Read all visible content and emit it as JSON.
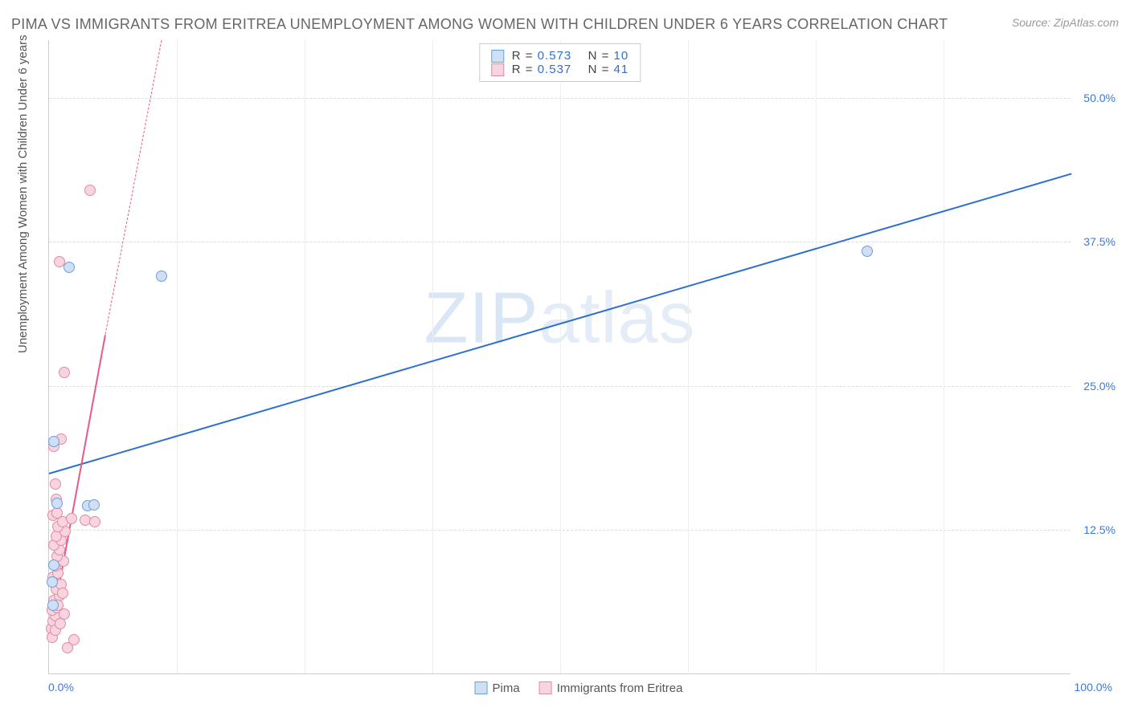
{
  "title": "PIMA VS IMMIGRANTS FROM ERITREA UNEMPLOYMENT AMONG WOMEN WITH CHILDREN UNDER 6 YEARS CORRELATION CHART",
  "source": "Source: ZipAtlas.com",
  "watermark": {
    "bold": "ZIP",
    "thin": "atlas"
  },
  "chart": {
    "type": "scatter",
    "xlim": [
      0,
      100
    ],
    "ylim": [
      0,
      55
    ],
    "xticks": [
      {
        "v": 0,
        "label": "0.0%"
      },
      {
        "v": 100,
        "label": "100.0%"
      }
    ],
    "yticks": [
      {
        "v": 12.5,
        "label": "12.5%"
      },
      {
        "v": 25.0,
        "label": "25.0%"
      },
      {
        "v": 37.5,
        "label": "37.5%"
      },
      {
        "v": 50.0,
        "label": "50.0%"
      }
    ],
    "grid_v": [
      12.5,
      25,
      37.5,
      50,
      62.5,
      75,
      87.5
    ],
    "ylabel": "Unemployment Among Women with Children Under 6 years",
    "grid_color": "#dddddd",
    "background_color": "#ffffff",
    "series": [
      {
        "name": "Pima",
        "color_fill": "#cfe0f5",
        "color_stroke": "#6a9fde",
        "line_color": "#2f6fd0",
        "marker_size": 14,
        "r_value": "0.573",
        "n_value": "10",
        "trend": {
          "x1": 0,
          "y1": 17.5,
          "x2": 100,
          "y2": 43.5,
          "dashed": false
        },
        "points": [
          {
            "x": 0.5,
            "y": 9.5
          },
          {
            "x": 0.8,
            "y": 14.8
          },
          {
            "x": 0.5,
            "y": 20.2
          },
          {
            "x": 3.8,
            "y": 14.6
          },
          {
            "x": 4.4,
            "y": 14.7
          },
          {
            "x": 2.0,
            "y": 35.3
          },
          {
            "x": 11.0,
            "y": 34.5
          },
          {
            "x": 80.0,
            "y": 36.7
          },
          {
            "x": 0.3,
            "y": 8.0
          },
          {
            "x": 0.4,
            "y": 6.0
          }
        ]
      },
      {
        "name": "Immigrants from Eritrea",
        "color_fill": "#f7d4de",
        "color_stroke": "#e38aa4",
        "line_color": "#e75a86",
        "marker_size": 14,
        "r_value": "0.537",
        "n_value": "41",
        "trend": {
          "x1": 0,
          "y1": 3.0,
          "x2": 5.5,
          "y2": 29.5,
          "dashed": true,
          "dash_extend": {
            "x2": 11.0,
            "y2": 55.0
          }
        },
        "points": [
          {
            "x": 0.2,
            "y": 4.0
          },
          {
            "x": 0.4,
            "y": 4.6
          },
          {
            "x": 0.6,
            "y": 5.1
          },
          {
            "x": 0.3,
            "y": 5.6
          },
          {
            "x": 0.8,
            "y": 5.8
          },
          {
            "x": 0.5,
            "y": 6.4
          },
          {
            "x": 1.0,
            "y": 6.8
          },
          {
            "x": 0.7,
            "y": 7.4
          },
          {
            "x": 1.2,
            "y": 7.8
          },
          {
            "x": 0.4,
            "y": 8.4
          },
          {
            "x": 0.9,
            "y": 8.8
          },
          {
            "x": 0.6,
            "y": 9.4
          },
          {
            "x": 1.4,
            "y": 9.8
          },
          {
            "x": 0.8,
            "y": 10.2
          },
          {
            "x": 1.0,
            "y": 10.8
          },
          {
            "x": 0.5,
            "y": 11.2
          },
          {
            "x": 1.2,
            "y": 11.6
          },
          {
            "x": 0.7,
            "y": 12.0
          },
          {
            "x": 1.6,
            "y": 12.4
          },
          {
            "x": 0.9,
            "y": 12.8
          },
          {
            "x": 1.3,
            "y": 13.2
          },
          {
            "x": 2.2,
            "y": 13.5
          },
          {
            "x": 3.5,
            "y": 13.4
          },
          {
            "x": 4.5,
            "y": 13.2
          },
          {
            "x": 0.4,
            "y": 13.8
          },
          {
            "x": 0.8,
            "y": 14.0
          },
          {
            "x": 0.6,
            "y": 16.5
          },
          {
            "x": 0.5,
            "y": 19.8
          },
          {
            "x": 1.2,
            "y": 20.4
          },
          {
            "x": 1.5,
            "y": 26.2
          },
          {
            "x": 1.0,
            "y": 35.8
          },
          {
            "x": 4.0,
            "y": 42.0
          },
          {
            "x": 1.8,
            "y": 2.3
          },
          {
            "x": 2.4,
            "y": 3.0
          },
          {
            "x": 0.3,
            "y": 3.2
          },
          {
            "x": 0.6,
            "y": 3.8
          },
          {
            "x": 1.1,
            "y": 4.4
          },
          {
            "x": 1.5,
            "y": 5.2
          },
          {
            "x": 0.9,
            "y": 6.0
          },
          {
            "x": 1.3,
            "y": 7.0
          },
          {
            "x": 0.7,
            "y": 15.2
          }
        ]
      }
    ],
    "legend_top_labels": {
      "r": "R =",
      "n": "N ="
    },
    "legend_bottom": [
      {
        "series": 0
      },
      {
        "series": 1
      }
    ]
  }
}
